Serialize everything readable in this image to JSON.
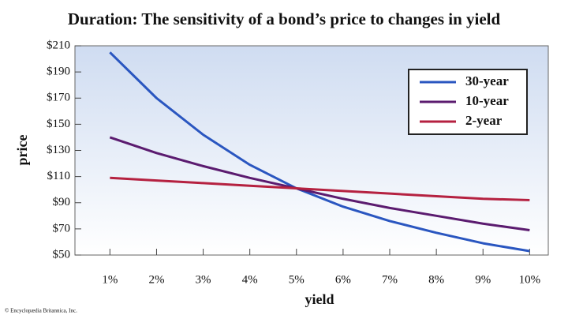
{
  "chart_data": {
    "type": "line",
    "title": "Duration: The sensitivity of a bond’s price to changes in yield",
    "x_label": "yield",
    "y_label": "price",
    "credit": "© Encyclopædia Britannica, Inc.",
    "x": [
      1,
      2,
      3,
      4,
      5,
      6,
      7,
      8,
      9,
      10
    ],
    "series": [
      {
        "name": "30-year",
        "color": "#2a56c0",
        "values": [
          205,
          170,
          142,
          119,
          101,
          87,
          76,
          67,
          59,
          53
        ]
      },
      {
        "name": "10-year",
        "color": "#5b1b6f",
        "values": [
          140,
          128,
          118,
          109,
          101,
          93,
          86,
          80,
          74,
          69
        ]
      },
      {
        "name": "2-year",
        "color": "#b52140",
        "values": [
          109,
          107,
          105,
          103,
          101,
          99,
          97,
          95,
          93,
          92
        ]
      }
    ],
    "xlim": [
      0.25,
      10.4
    ],
    "xticks": [
      {
        "value": 1,
        "label": "1%"
      },
      {
        "value": 2,
        "label": "2%"
      },
      {
        "value": 3,
        "label": "3%"
      },
      {
        "value": 4,
        "label": "4%"
      },
      {
        "value": 5,
        "label": "5%"
      },
      {
        "value": 6,
        "label": "6%"
      },
      {
        "value": 7,
        "label": "7%"
      },
      {
        "value": 8,
        "label": "8%"
      },
      {
        "value": 9,
        "label": "9%"
      },
      {
        "value": 10,
        "label": "10%"
      }
    ],
    "ylim": [
      50,
      210
    ],
    "yticks": [
      {
        "value": 50,
        "label": "$50"
      },
      {
        "value": 70,
        "label": "$70"
      },
      {
        "value": 90,
        "label": "$90"
      },
      {
        "value": 110,
        "label": "$110"
      },
      {
        "value": 130,
        "label": "$130"
      },
      {
        "value": 150,
        "label": "$150"
      },
      {
        "value": 170,
        "label": "$170"
      },
      {
        "value": 190,
        "label": "$190"
      },
      {
        "value": 210,
        "label": "$210"
      }
    ],
    "legend": "upper right"
  }
}
